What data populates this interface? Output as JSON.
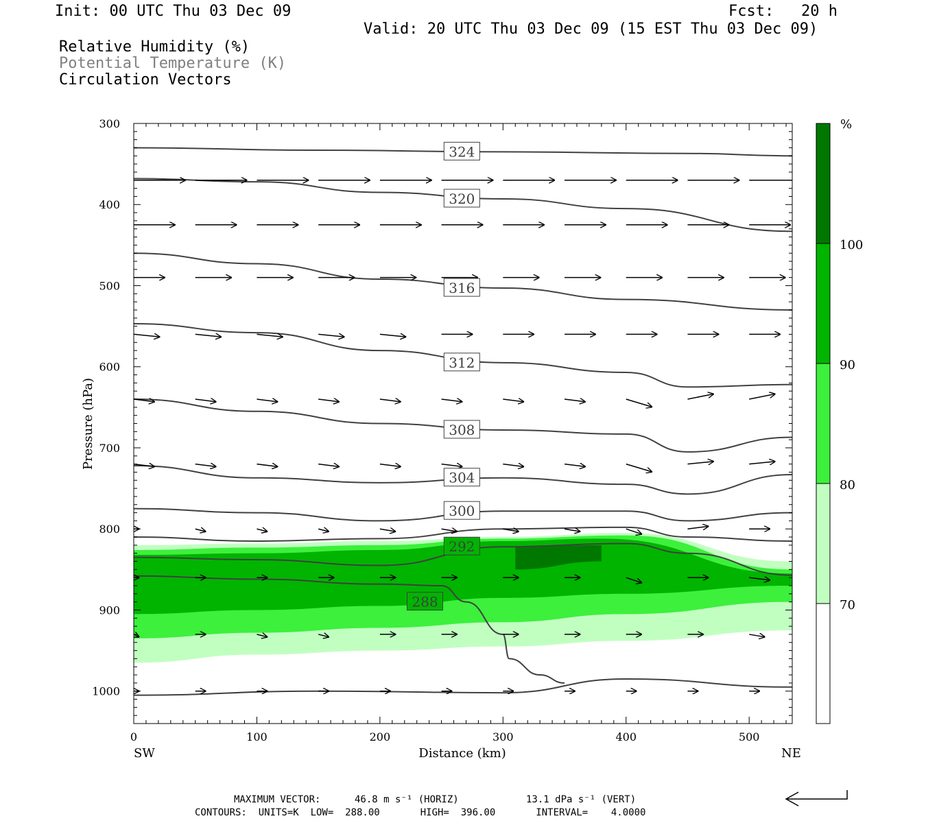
{
  "header": {
    "init": "Init: 00 UTC Thu 03 Dec 09",
    "fcst": "Fcst:   20 h",
    "valid": "Valid: 20 UTC Thu 03 Dec 09 (15 EST Thu 03 Dec 09)",
    "field1": "Relative Humidity (%)",
    "field2": "Potential Temperature (K)",
    "field3": "Circulation Vectors"
  },
  "footer": {
    "max_vector_label": "MAXIMUM VECTOR:",
    "max_horiz": "46.8 m s⁻¹ (HORIZ)",
    "max_vert": "13.1 dPa s⁻¹ (VERT)",
    "contours": "CONTOURS:  UNITS=K  LOW=  288.00       HIGH=  396.00       INTERVAL=    4.0000"
  },
  "colors": {
    "rh_70_80": "#c1ffc1",
    "rh_80_90": "#3cf03c",
    "rh_90_100": "#00b400",
    "rh_100": "#007800",
    "contour": "#404040",
    "vector": "#000000"
  },
  "chart_data": {
    "type": "heatmap",
    "xlabel": "Distance (km)",
    "ylabel": "Pressure (hPa)",
    "xlim": [
      0,
      535
    ],
    "ylim": [
      1040,
      300
    ],
    "x_ticks": [
      0,
      100,
      200,
      300,
      400,
      500
    ],
    "y_ticks": [
      300,
      400,
      500,
      600,
      700,
      800,
      900,
      1000
    ],
    "x_end_labels": {
      "left": "SW",
      "right": "NE"
    },
    "colorbar": {
      "unit": "%",
      "levels": [
        70,
        80,
        90,
        100
      ],
      "colors": [
        "#ffffff",
        "#c1ffc1",
        "#3cf03c",
        "#00b400",
        "#007800"
      ]
    },
    "rh_fields": [
      {
        "level": 70,
        "top": [
          [
            0,
            820
          ],
          [
            100,
            818
          ],
          [
            200,
            815
          ],
          [
            300,
            810
          ],
          [
            400,
            805
          ],
          [
            535,
            840
          ]
        ],
        "bottom": [
          [
            0,
            965
          ],
          [
            100,
            955
          ],
          [
            200,
            950
          ],
          [
            300,
            945
          ],
          [
            400,
            938
          ],
          [
            535,
            925
          ]
        ]
      },
      {
        "level": 80,
        "top": [
          [
            0,
            826
          ],
          [
            100,
            823
          ],
          [
            200,
            820
          ],
          [
            300,
            812
          ],
          [
            400,
            808
          ],
          [
            535,
            850
          ]
        ],
        "bottom": [
          [
            0,
            935
          ],
          [
            100,
            928
          ],
          [
            200,
            922
          ],
          [
            300,
            915
          ],
          [
            400,
            905
          ],
          [
            535,
            890
          ]
        ]
      },
      {
        "level": 90,
        "top": [
          [
            0,
            832
          ],
          [
            100,
            830
          ],
          [
            200,
            826
          ],
          [
            300,
            815
          ],
          [
            380,
            812
          ],
          [
            535,
            855
          ]
        ],
        "bottom": [
          [
            0,
            905
          ],
          [
            100,
            900
          ],
          [
            200,
            895
          ],
          [
            300,
            885
          ],
          [
            400,
            880
          ],
          [
            535,
            870
          ]
        ]
      },
      {
        "level": 100,
        "top": [
          [
            310,
            822
          ],
          [
            380,
            820
          ]
        ],
        "bottom": [
          [
            310,
            850
          ],
          [
            380,
            840
          ]
        ]
      }
    ],
    "theta_contours": [
      {
        "value": 324,
        "label": "324",
        "points": [
          [
            0,
            330
          ],
          [
            150,
            333
          ],
          [
            300,
            335
          ],
          [
            450,
            337
          ],
          [
            535,
            340
          ]
        ]
      },
      {
        "value": 320,
        "label": "320",
        "points": [
          [
            0,
            368
          ],
          [
            100,
            372
          ],
          [
            200,
            385
          ],
          [
            300,
            393
          ],
          [
            400,
            405
          ],
          [
            535,
            433
          ]
        ]
      },
      {
        "value": 316,
        "label": "316",
        "points": [
          [
            0,
            460
          ],
          [
            100,
            473
          ],
          [
            200,
            492
          ],
          [
            300,
            503
          ],
          [
            400,
            517
          ],
          [
            535,
            530
          ]
        ]
      },
      {
        "value": 312,
        "label": "312",
        "points": [
          [
            0,
            547
          ],
          [
            100,
            558
          ],
          [
            200,
            580
          ],
          [
            300,
            595
          ],
          [
            400,
            607
          ],
          [
            450,
            625
          ],
          [
            535,
            622
          ]
        ]
      },
      {
        "value": 308,
        "label": "308",
        "points": [
          [
            0,
            640
          ],
          [
            100,
            655
          ],
          [
            200,
            670
          ],
          [
            300,
            678
          ],
          [
            400,
            683
          ],
          [
            450,
            705
          ],
          [
            535,
            687
          ]
        ]
      },
      {
        "value": 304,
        "label": "304",
        "points": [
          [
            0,
            722
          ],
          [
            100,
            737
          ],
          [
            200,
            743
          ],
          [
            300,
            737
          ],
          [
            400,
            745
          ],
          [
            450,
            757
          ],
          [
            535,
            733
          ]
        ]
      },
      {
        "value": 300,
        "label": "300",
        "points": [
          [
            0,
            775
          ],
          [
            100,
            780
          ],
          [
            200,
            790
          ],
          [
            300,
            778
          ],
          [
            400,
            778
          ],
          [
            450,
            790
          ],
          [
            535,
            780
          ]
        ]
      },
      {
        "value": 296,
        "label": "",
        "points": [
          [
            0,
            810
          ],
          [
            100,
            815
          ],
          [
            200,
            812
          ],
          [
            300,
            800
          ],
          [
            400,
            798
          ],
          [
            450,
            810
          ],
          [
            535,
            815
          ]
        ]
      },
      {
        "value": 292,
        "label": "292",
        "points": [
          [
            0,
            835
          ],
          [
            100,
            838
          ],
          [
            200,
            845
          ],
          [
            300,
            822
          ],
          [
            400,
            818
          ],
          [
            450,
            830
          ],
          [
            535,
            857
          ]
        ]
      },
      {
        "value": 288,
        "label": "288",
        "points": [
          [
            0,
            858
          ],
          [
            100,
            862
          ],
          [
            200,
            868
          ],
          [
            250,
            870
          ],
          [
            270,
            890
          ],
          [
            300,
            930
          ],
          [
            305,
            960
          ],
          [
            330,
            980
          ],
          [
            350,
            990
          ]
        ]
      },
      {
        "value": 288,
        "label": "",
        "points": [
          [
            0,
            1005
          ],
          [
            150,
            1000
          ],
          [
            300,
            1002
          ],
          [
            400,
            985
          ],
          [
            535,
            995
          ]
        ]
      }
    ],
    "vectors": [
      {
        "p": 370,
        "x_positions": [
          0,
          50,
          100,
          150,
          200,
          250,
          300,
          350,
          400,
          450,
          500
        ],
        "u": [
          1,
          1,
          1,
          1,
          1,
          1,
          1,
          1,
          1,
          1,
          1
        ],
        "w": [
          0,
          0,
          0,
          0,
          0,
          0,
          0,
          0,
          0,
          0,
          0
        ]
      },
      {
        "p": 425,
        "x_positions": [
          0,
          50,
          100,
          150,
          200,
          250,
          300,
          350,
          400,
          450,
          500
        ],
        "u": [
          0.8,
          0.8,
          0.8,
          0.8,
          0.8,
          0.8,
          0.8,
          0.8,
          0.8,
          0.8,
          0.8
        ],
        "w": [
          0,
          0,
          0,
          0,
          0,
          0,
          0,
          0,
          0,
          0,
          0
        ]
      },
      {
        "p": 490,
        "x_positions": [
          0,
          50,
          100,
          150,
          200,
          250,
          300,
          350,
          400,
          450,
          500
        ],
        "u": [
          0.6,
          0.7,
          0.7,
          0.7,
          0.7,
          0.7,
          0.7,
          0.7,
          0.7,
          0.7,
          0.7
        ],
        "w": [
          0,
          0,
          0,
          0,
          0,
          0,
          0,
          0,
          0,
          0,
          0
        ]
      },
      {
        "p": 560,
        "x_positions": [
          0,
          50,
          100,
          150,
          200,
          250,
          300,
          350,
          400,
          450,
          500
        ],
        "u": [
          0.5,
          0.5,
          0.5,
          0.5,
          0.5,
          0.6,
          0.6,
          0.6,
          0.6,
          0.6,
          0.6
        ],
        "w": [
          -0.05,
          -0.05,
          -0.05,
          -0.05,
          -0.05,
          0,
          0,
          0,
          0,
          0,
          0
        ]
      },
      {
        "p": 640,
        "x_positions": [
          0,
          50,
          100,
          150,
          200,
          250,
          300,
          350,
          400,
          450,
          500
        ],
        "u": [
          0.4,
          0.4,
          0.4,
          0.4,
          0.4,
          0.4,
          0.4,
          0.4,
          0.5,
          0.5,
          0.5
        ],
        "w": [
          -0.05,
          -0.05,
          -0.05,
          -0.05,
          -0.05,
          -0.05,
          -0.05,
          -0.05,
          -0.15,
          0.1,
          0.1
        ]
      },
      {
        "p": 720,
        "x_positions": [
          0,
          50,
          100,
          150,
          200,
          250,
          300,
          350,
          400,
          450,
          500
        ],
        "u": [
          0.4,
          0.4,
          0.4,
          0.4,
          0.4,
          0.4,
          0.4,
          0.4,
          0.5,
          0.5,
          0.5
        ],
        "w": [
          -0.05,
          -0.05,
          -0.05,
          -0.05,
          -0.05,
          -0.05,
          -0.05,
          -0.05,
          -0.15,
          0.05,
          0.05
        ]
      },
      {
        "p": 800,
        "x_positions": [
          0,
          50,
          100,
          150,
          200,
          250,
          300,
          350,
          400,
          450,
          500
        ],
        "u": [
          0.1,
          0.2,
          0.2,
          0.2,
          0.3,
          0.3,
          0.3,
          0.3,
          0.3,
          0.4,
          0.4
        ],
        "w": [
          0,
          -0.05,
          -0.05,
          -0.05,
          -0.05,
          -0.05,
          -0.05,
          -0.05,
          -0.1,
          0.05,
          0
        ]
      },
      {
        "p": 860,
        "x_positions": [
          0,
          50,
          100,
          150,
          200,
          250,
          300,
          350,
          400,
          450,
          500
        ],
        "u": [
          0.1,
          0.2,
          0.2,
          0.3,
          0.3,
          0.3,
          0.3,
          0.3,
          0.3,
          0.4,
          0.4
        ],
        "w": [
          0,
          0,
          0,
          0,
          0,
          0,
          0,
          0,
          -0.1,
          0,
          -0.05
        ]
      },
      {
        "p": 930,
        "x_positions": [
          0,
          50,
          100,
          150,
          200,
          250,
          300,
          350,
          400,
          450,
          500
        ],
        "u": [
          0.1,
          0.2,
          0.2,
          0.2,
          0.3,
          0.3,
          0.3,
          0.3,
          0.3,
          0.3,
          0.3
        ],
        "w": [
          -0.05,
          0,
          -0.05,
          -0.05,
          0,
          0,
          0,
          0,
          0,
          0,
          -0.05
        ]
      },
      {
        "p": 1000,
        "x_positions": [
          0,
          50,
          100,
          150,
          200,
          250,
          300,
          350,
          400,
          450,
          500
        ],
        "u": [
          0.1,
          0.2,
          0.2,
          0.2,
          0.2,
          0.2,
          0.2,
          0.2,
          0.2,
          0.2,
          0.2
        ],
        "w": [
          0,
          0,
          0,
          0,
          0,
          0,
          0,
          0,
          0,
          0,
          0
        ]
      }
    ]
  }
}
